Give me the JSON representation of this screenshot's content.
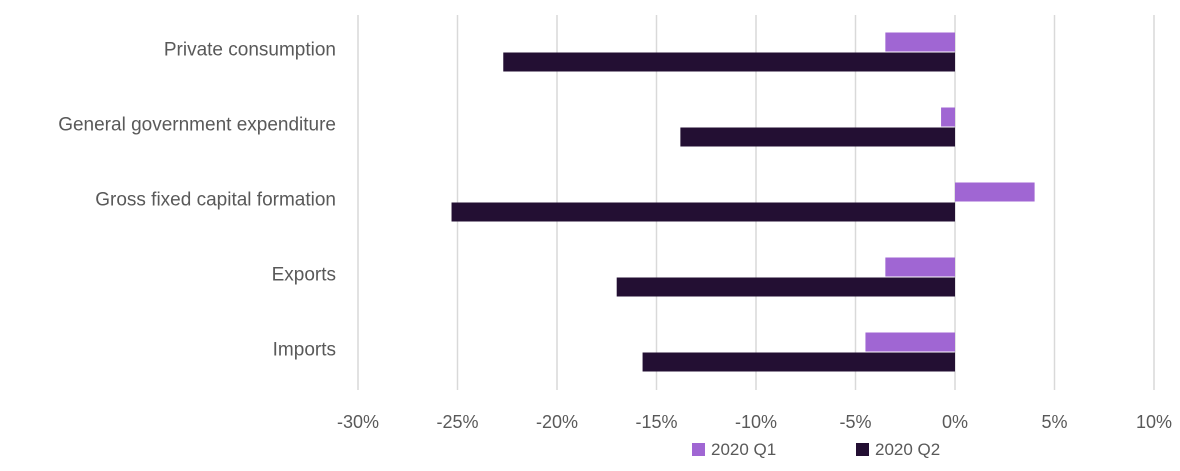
{
  "chart_data": {
    "type": "bar",
    "orientation": "horizontal",
    "title": "",
    "xlabel": "",
    "ylabel": "",
    "categories": [
      "Private consumption",
      "General government expenditure",
      "Gross fixed capital formation",
      "Exports",
      "Imports"
    ],
    "series": [
      {
        "name": "2020 Q1",
        "color": "#a066d3",
        "values": [
          -3.5,
          -0.7,
          4.0,
          -3.5,
          -4.5
        ]
      },
      {
        "name": "2020 Q2",
        "color": "#230f33",
        "values": [
          -22.7,
          -13.8,
          -25.3,
          -17.0,
          -15.7
        ]
      }
    ],
    "xlim": [
      -30,
      10
    ],
    "xticks": [
      -30,
      -25,
      -20,
      -15,
      -10,
      -5,
      0,
      5,
      10
    ],
    "tick_labels": [
      "-30%",
      "-25%",
      "-20%",
      "-15%",
      "-10%",
      "-5%",
      "0%",
      "5%",
      "10%"
    ],
    "grid": "vertical",
    "legend": "bottom"
  }
}
